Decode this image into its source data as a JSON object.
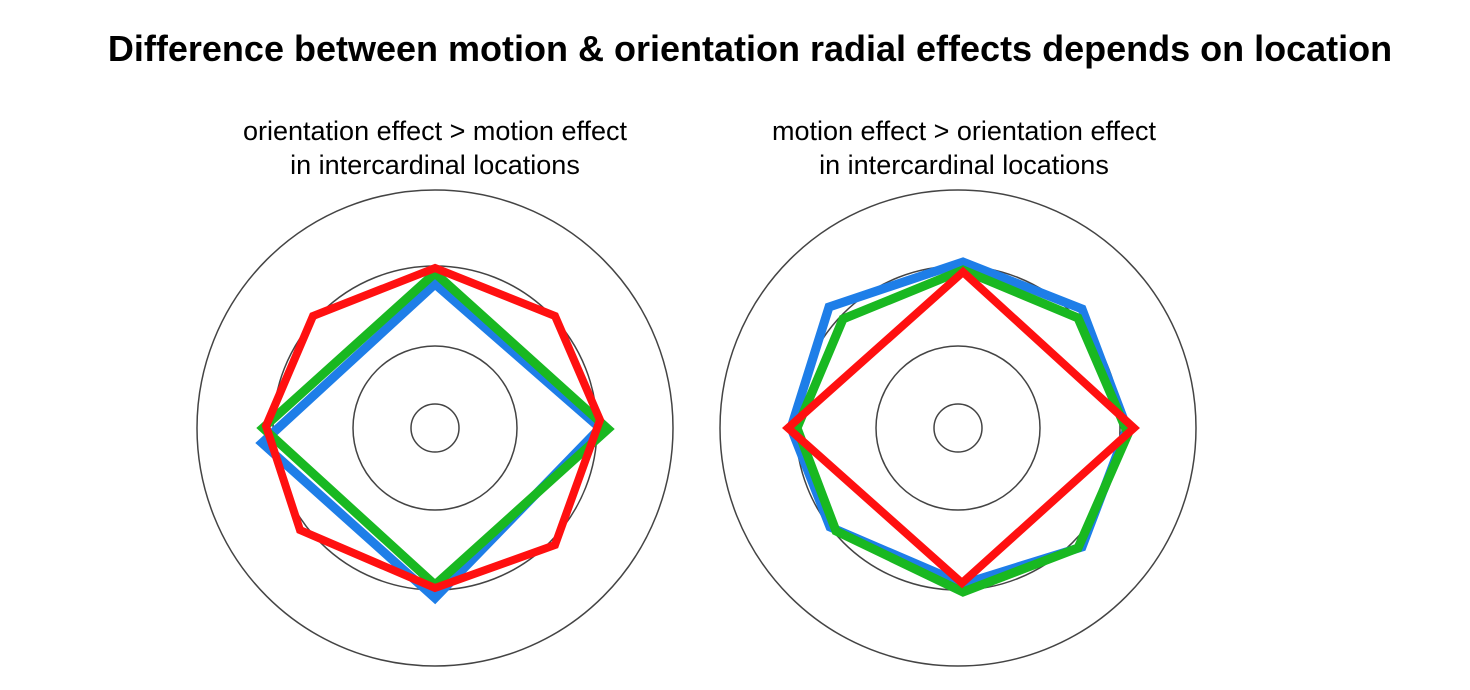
{
  "title": "Difference between motion & orientation radial effects depends on location",
  "panels": [
    {
      "caption_line1": "orientation effect > motion effect",
      "caption_line2": "in intercardinal locations",
      "reference_rings": [
        "inner",
        "middle",
        "outer-reference",
        "outer"
      ],
      "series": [
        {
          "name": "blue",
          "color": "#1e7ee8",
          "shape": "diamond"
        },
        {
          "name": "green",
          "color": "#19b821",
          "shape": "diamond"
        },
        {
          "name": "red",
          "color": "#ff1010",
          "shape": "octagon"
        }
      ]
    },
    {
      "caption_line1": "motion effect > orientation effect",
      "caption_line2": "in intercardinal locations",
      "reference_rings": [
        "inner",
        "middle",
        "outer-reference",
        "outer"
      ],
      "series": [
        {
          "name": "blue",
          "color": "#1e7ee8",
          "shape": "octagon"
        },
        {
          "name": "green",
          "color": "#19b821",
          "shape": "octagon"
        },
        {
          "name": "red",
          "color": "#ff1010",
          "shape": "diamond"
        }
      ]
    }
  ]
}
